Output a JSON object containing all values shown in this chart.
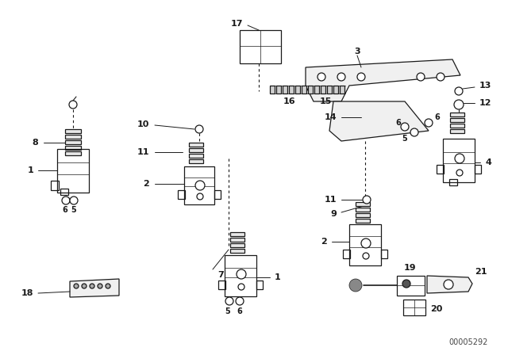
{
  "bg_color": "#ffffff",
  "line_color": "#1a1a1a",
  "part_number": "00005292",
  "figsize": [
    6.4,
    4.48
  ],
  "dpi": 100
}
